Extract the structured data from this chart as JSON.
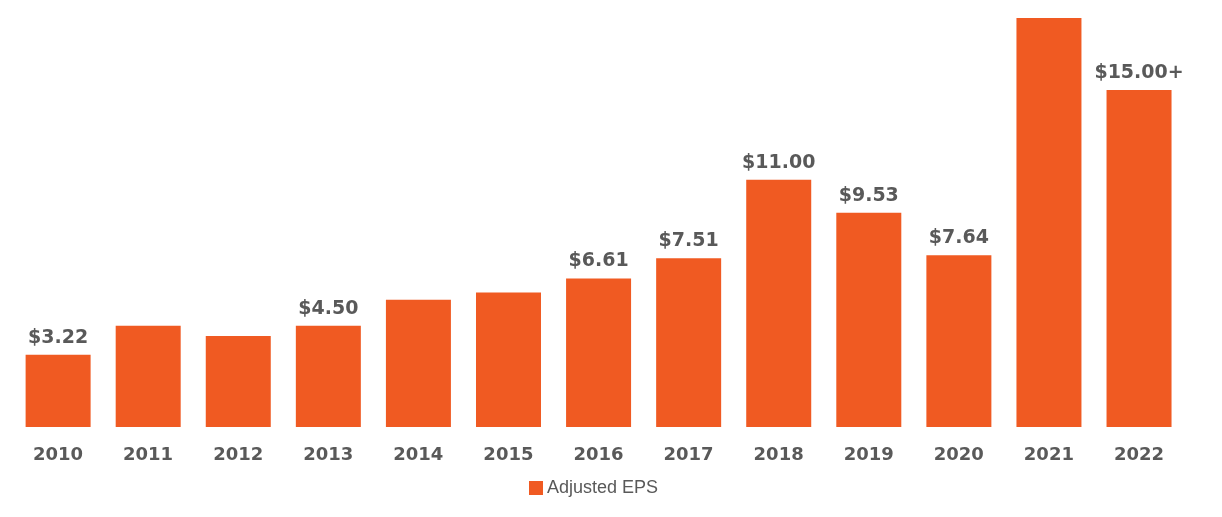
{
  "chart_data": {
    "type": "bar",
    "categories": [
      "2010",
      "2011",
      "2012",
      "2013",
      "2014",
      "2015",
      "2016",
      "2017",
      "2018",
      "2019",
      "2020",
      "2021",
      "2022"
    ],
    "series": [
      {
        "name": "Adjusted EPS",
        "color": "#f05a22",
        "values": [
          3.22,
          4.5,
          4.05,
          4.5,
          5.66,
          5.99,
          6.61,
          7.51,
          11,
          9.53,
          7.64,
          18.2,
          15
        ],
        "value_labels": [
          "$3.22",
          null,
          null,
          "$4.50",
          null,
          null,
          "$6.61",
          "$7.51",
          "$11.00",
          "$9.53",
          "$7.64",
          null,
          "$15.00+"
        ]
      }
    ],
    "tick_labels": "x",
    "legend": "bottom"
  }
}
